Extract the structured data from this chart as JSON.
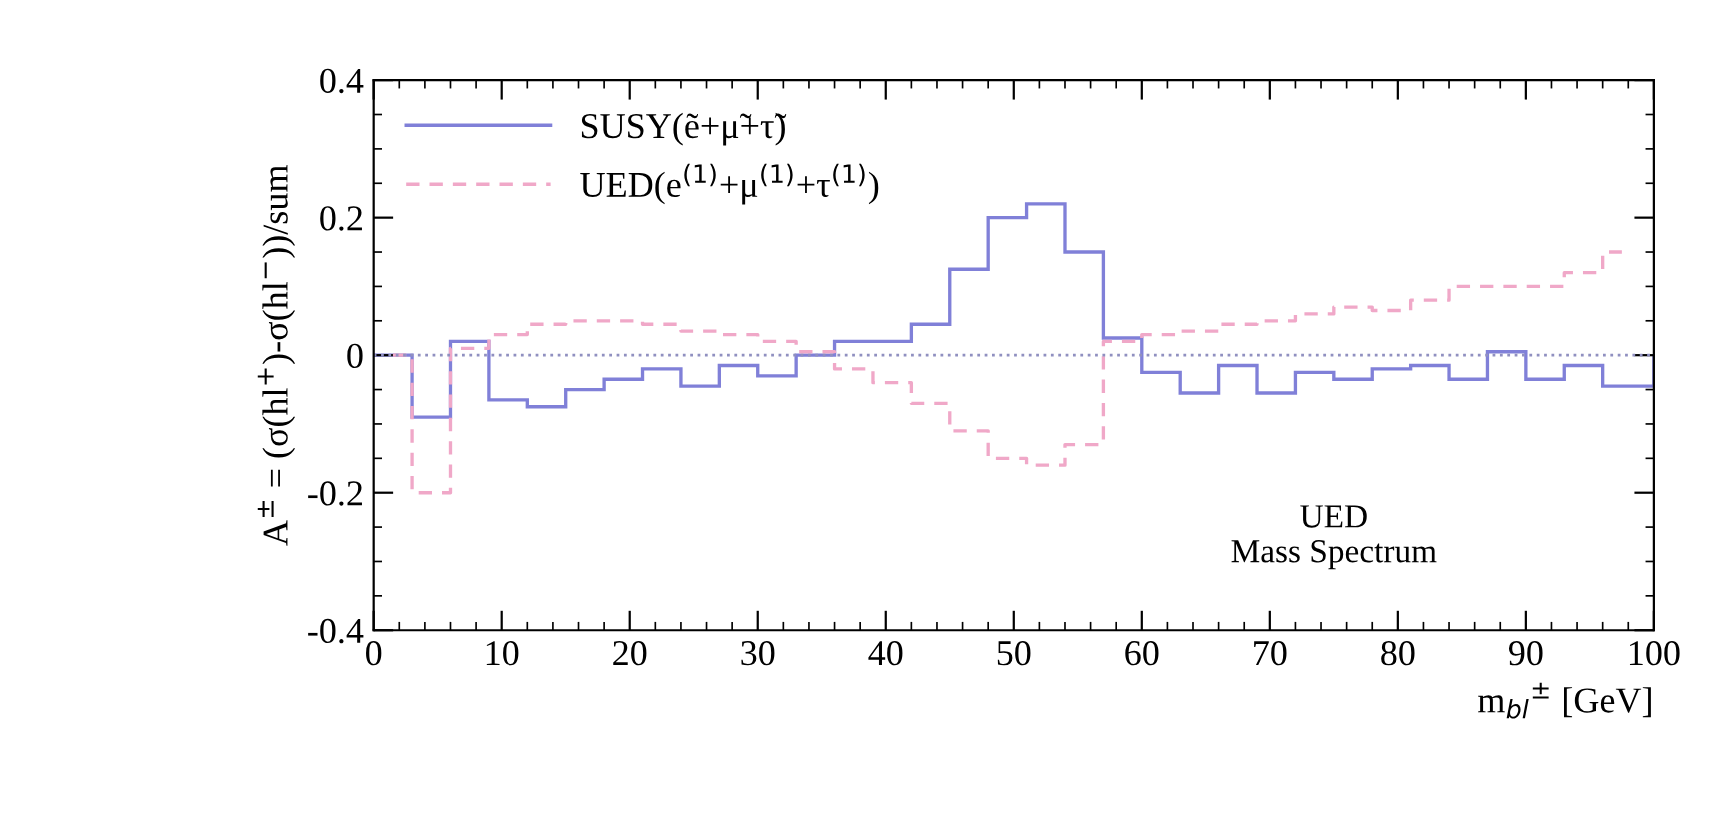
{
  "chart_data": {
    "type": "histogram",
    "xlabel": "m$_{bl}$$^{±}$ [GeV]",
    "ylabel": "A$^{±}$ = (σ(hl$^{+}$)-σ(hl$^{−}$))/sum",
    "bins": [
      0,
      3,
      6,
      9,
      12,
      15,
      18,
      21,
      24,
      27,
      30,
      33,
      36,
      39,
      42,
      45,
      48,
      51,
      54,
      57,
      60,
      63,
      66,
      69,
      72,
      75,
      78,
      81,
      84,
      87,
      90,
      93,
      96,
      100
    ],
    "series": [
      {
        "name": "SUSY(ẽ+μ̃+τ̃)",
        "color": "#8080d8",
        "line_style": "solid",
        "values": [
          0,
          -0.09,
          0.02,
          -0.065,
          -0.075,
          -0.05,
          -0.035,
          -0.02,
          -0.045,
          -0.015,
          -0.03,
          0,
          0.02,
          0.02,
          0.045,
          0.125,
          0.2,
          0.22,
          0.15,
          0.025,
          -0.025,
          -0.055,
          -0.015,
          -0.055,
          -0.025,
          -0.035,
          -0.02,
          -0.015,
          -0.035,
          0.005,
          -0.035,
          -0.015,
          -0.045
        ]
      },
      {
        "name": "UED(e$^{(1)}$+μ$^{(1)}$+τ$^{(1)}$)",
        "type": "step",
        "color": "#f0a8c8",
        "line_style": "dashed",
        "x": [
          1.5,
          4.5,
          7.5,
          10.5,
          13.5,
          16.5,
          19.5,
          22.5,
          25.5,
          28.5,
          31.5,
          34.5,
          37.5,
          40.5,
          43.5,
          46.5,
          49.5,
          52.5,
          55.5,
          58.5,
          61.5,
          64.5,
          67.5,
          70.5,
          73.5,
          76.5,
          79.5,
          82.5,
          85.5,
          88.5,
          91.5,
          94.5,
          97.5
        ],
        "values": [
          0,
          -0.2,
          0.01,
          0.03,
          0.045,
          0.05,
          0.05,
          0.045,
          0.035,
          0.03,
          0.02,
          0.005,
          -0.02,
          -0.04,
          -0.07,
          -0.11,
          -0.15,
          -0.16,
          -0.13,
          0.02,
          0.03,
          0.035,
          0.045,
          0.05,
          0.06,
          0.07,
          0.065,
          0.08,
          0.1,
          0.1,
          0.1,
          0.12,
          0.15
        ]
      }
    ],
    "ref_lines": [
      {
        "axis": "y",
        "value": 0,
        "color": "#9090c0",
        "line_style": "dotted"
      }
    ],
    "annotations": [
      "UED\nMass Spectrum"
    ],
    "xlim": [
      0,
      100
    ],
    "ylim": [
      -0.4,
      0.4
    ],
    "xticks": [
      0,
      10,
      20,
      30,
      40,
      50,
      60,
      70,
      80,
      90,
      100
    ],
    "yticks": [
      {
        "value": -0.4,
        "label": "-0.4"
      },
      {
        "value": -0.2,
        "label": "-0.2"
      },
      0,
      0.2,
      0.4
    ],
    "legend": "top left",
    "grid": false
  }
}
